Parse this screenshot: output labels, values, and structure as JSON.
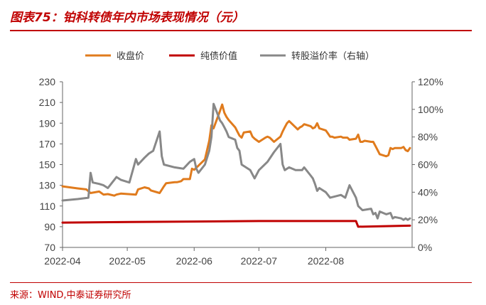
{
  "header": {
    "title": "图表75：铂科转债年内市场表现情况（元）"
  },
  "footer": {
    "source": "来源：WIND,中泰证券研究所"
  },
  "chart_data": {
    "type": "line",
    "x_ticks": [
      "2022-04",
      "2022-05",
      "2022-06",
      "2022-07",
      "2022-08"
    ],
    "y_left": {
      "ticks": [
        "70",
        "90",
        "110",
        "130",
        "150",
        "170",
        "190",
        "210",
        "230"
      ],
      "min": 70,
      "max": 230
    },
    "y_right": {
      "ticks": [
        "0%",
        "20%",
        "40%",
        "60%",
        "80%",
        "100%",
        "120%"
      ],
      "min": 0,
      "max": 120
    },
    "legend_position": "top",
    "series": [
      {
        "name": "收盘价",
        "axis": "left",
        "color": "#e07b1d",
        "points": [
          [
            "2022-04-01",
            129
          ],
          [
            "2022-04-08",
            127
          ],
          [
            "2022-04-12",
            126
          ],
          [
            "2022-04-14",
            122.5
          ],
          [
            "2022-04-18",
            124
          ],
          [
            "2022-04-20",
            121
          ],
          [
            "2022-04-22",
            121.5
          ],
          [
            "2022-04-25",
            120
          ],
          [
            "2022-04-26",
            121
          ],
          [
            "2022-04-28",
            122
          ],
          [
            "2022-05-05",
            121
          ],
          [
            "2022-05-06",
            126
          ],
          [
            "2022-05-09",
            128
          ],
          [
            "2022-05-11",
            127
          ],
          [
            "2022-05-12",
            125
          ],
          [
            "2022-05-16",
            122.5
          ],
          [
            "2022-05-18",
            129
          ],
          [
            "2022-05-19",
            132
          ],
          [
            "2022-05-23",
            133
          ],
          [
            "2022-05-24",
            133
          ],
          [
            "2022-05-26",
            134
          ],
          [
            "2022-05-27",
            136
          ],
          [
            "2022-05-30",
            136
          ],
          [
            "2022-05-31",
            146
          ],
          [
            "2022-06-01",
            145
          ],
          [
            "2022-06-02",
            147
          ],
          [
            "2022-06-06",
            155
          ],
          [
            "2022-06-08",
            173
          ],
          [
            "2022-06-09",
            188
          ],
          [
            "2022-06-10",
            185
          ],
          [
            "2022-06-13",
            202
          ],
          [
            "2022-06-14",
            208
          ],
          [
            "2022-06-15",
            200
          ],
          [
            "2022-06-16",
            196
          ],
          [
            "2022-06-17",
            193
          ],
          [
            "2022-06-20",
            186
          ],
          [
            "2022-06-21",
            182
          ],
          [
            "2022-06-22",
            178
          ],
          [
            "2022-06-23",
            176
          ],
          [
            "2022-06-24",
            181
          ],
          [
            "2022-06-27",
            182
          ],
          [
            "2022-06-28",
            177
          ],
          [
            "2022-06-29",
            175
          ],
          [
            "2022-07-01",
            172
          ],
          [
            "2022-07-04",
            176
          ],
          [
            "2022-07-05",
            177
          ],
          [
            "2022-07-06",
            176
          ],
          [
            "2022-07-07",
            174
          ],
          [
            "2022-07-08",
            172
          ],
          [
            "2022-07-11",
            177
          ],
          [
            "2022-07-12",
            182
          ],
          [
            "2022-07-13",
            186
          ],
          [
            "2022-07-14",
            190
          ],
          [
            "2022-07-15",
            192
          ],
          [
            "2022-07-18",
            186
          ],
          [
            "2022-07-19",
            184
          ],
          [
            "2022-07-20",
            186
          ],
          [
            "2022-07-21",
            187
          ],
          [
            "2022-07-22",
            189
          ],
          [
            "2022-07-25",
            187
          ],
          [
            "2022-07-26",
            185
          ],
          [
            "2022-07-27",
            186
          ],
          [
            "2022-07-28",
            190
          ],
          [
            "2022-07-29",
            185
          ],
          [
            "2022-08-01",
            183
          ],
          [
            "2022-08-02",
            180
          ],
          [
            "2022-08-03",
            177
          ],
          [
            "2022-08-04",
            177
          ],
          [
            "2022-08-05",
            176
          ],
          [
            "2022-08-08",
            177
          ],
          [
            "2022-08-09",
            176
          ],
          [
            "2022-08-10",
            176
          ],
          [
            "2022-08-11",
            176
          ],
          [
            "2022-08-12",
            174
          ],
          [
            "2022-08-15",
            175
          ],
          [
            "2022-08-16",
            179
          ],
          [
            "2022-08-17",
            172
          ],
          [
            "2022-08-18",
            172
          ],
          [
            "2022-08-19",
            173
          ],
          [
            "2022-08-22",
            172
          ],
          [
            "2022-08-23",
            172
          ],
          [
            "2022-08-24",
            168
          ],
          [
            "2022-08-25",
            164
          ],
          [
            "2022-08-26",
            160
          ],
          [
            "2022-08-29",
            158
          ],
          [
            "2022-08-30",
            159
          ],
          [
            "2022-08-31",
            166
          ],
          [
            "2022-09-01",
            165
          ],
          [
            "2022-09-02",
            166
          ],
          [
            "2022-09-05",
            166
          ],
          [
            "2022-09-06",
            167
          ],
          [
            "2022-09-07",
            164
          ],
          [
            "2022-09-08",
            163
          ],
          [
            "2022-09-09",
            166
          ]
        ]
      },
      {
        "name": "纯债价值",
        "axis": "left",
        "color": "#c00000",
        "points": [
          [
            "2022-04-01",
            94
          ],
          [
            "2022-05-02",
            94.5
          ],
          [
            "2022-06-01",
            95
          ],
          [
            "2022-07-01",
            95.5
          ],
          [
            "2022-08-01",
            95.5
          ],
          [
            "2022-08-15",
            95.5
          ],
          [
            "2022-08-16",
            90
          ],
          [
            "2022-09-09",
            91
          ]
        ]
      },
      {
        "name": "转股溢价率（右轴）",
        "axis": "right",
        "color": "#888888",
        "points": [
          [
            "2022-04-01",
            34
          ],
          [
            "2022-04-08",
            35
          ],
          [
            "2022-04-13",
            36
          ],
          [
            "2022-04-14",
            54
          ],
          [
            "2022-04-15",
            47
          ],
          [
            "2022-04-18",
            46
          ],
          [
            "2022-04-20",
            45
          ],
          [
            "2022-04-22",
            43
          ],
          [
            "2022-04-25",
            49
          ],
          [
            "2022-04-26",
            51
          ],
          [
            "2022-04-28",
            49
          ],
          [
            "2022-05-02",
            47
          ],
          [
            "2022-05-05",
            64
          ],
          [
            "2022-05-06",
            60
          ],
          [
            "2022-05-09",
            65
          ],
          [
            "2022-05-11",
            68
          ],
          [
            "2022-05-13",
            70
          ],
          [
            "2022-05-16",
            84
          ],
          [
            "2022-05-17",
            66
          ],
          [
            "2022-05-18",
            60
          ],
          [
            "2022-05-23",
            58
          ],
          [
            "2022-05-27",
            57
          ],
          [
            "2022-05-30",
            62
          ],
          [
            "2022-05-31",
            63
          ],
          [
            "2022-06-01",
            64
          ],
          [
            "2022-06-02",
            57
          ],
          [
            "2022-06-03",
            54
          ],
          [
            "2022-06-06",
            60
          ],
          [
            "2022-06-08",
            70
          ],
          [
            "2022-06-09",
            80
          ],
          [
            "2022-06-10",
            104
          ],
          [
            "2022-06-13",
            92
          ],
          [
            "2022-06-14",
            90
          ],
          [
            "2022-06-15",
            87
          ],
          [
            "2022-06-16",
            84
          ],
          [
            "2022-06-17",
            80
          ],
          [
            "2022-06-20",
            78
          ],
          [
            "2022-06-21",
            72
          ],
          [
            "2022-06-22",
            70
          ],
          [
            "2022-06-23",
            60
          ],
          [
            "2022-06-27",
            56
          ],
          [
            "2022-06-29",
            50
          ],
          [
            "2022-07-01",
            56
          ],
          [
            "2022-07-05",
            62
          ],
          [
            "2022-07-08",
            69
          ],
          [
            "2022-07-11",
            75
          ],
          [
            "2022-07-12",
            60
          ],
          [
            "2022-07-13",
            56
          ],
          [
            "2022-07-15",
            58
          ],
          [
            "2022-07-18",
            56
          ],
          [
            "2022-07-21",
            56
          ],
          [
            "2022-07-22",
            58
          ],
          [
            "2022-07-25",
            52
          ],
          [
            "2022-07-26",
            50
          ],
          [
            "2022-07-27",
            46
          ],
          [
            "2022-07-28",
            41
          ],
          [
            "2022-07-29",
            43
          ],
          [
            "2022-08-01",
            40
          ],
          [
            "2022-08-03",
            36
          ],
          [
            "2022-08-08",
            38
          ],
          [
            "2022-08-10",
            36
          ],
          [
            "2022-08-12",
            45
          ],
          [
            "2022-08-15",
            36
          ],
          [
            "2022-08-16",
            30
          ],
          [
            "2022-08-18",
            27
          ],
          [
            "2022-08-22",
            28
          ],
          [
            "2022-08-23",
            24
          ],
          [
            "2022-08-24",
            25
          ],
          [
            "2022-08-25",
            21
          ],
          [
            "2022-08-26",
            26
          ],
          [
            "2022-08-29",
            24
          ],
          [
            "2022-08-31",
            25
          ],
          [
            "2022-09-01",
            21
          ],
          [
            "2022-09-02",
            22
          ],
          [
            "2022-09-05",
            21
          ],
          [
            "2022-09-06",
            20
          ],
          [
            "2022-09-07",
            21
          ],
          [
            "2022-09-08",
            20
          ],
          [
            "2022-09-09",
            21
          ]
        ]
      }
    ]
  }
}
